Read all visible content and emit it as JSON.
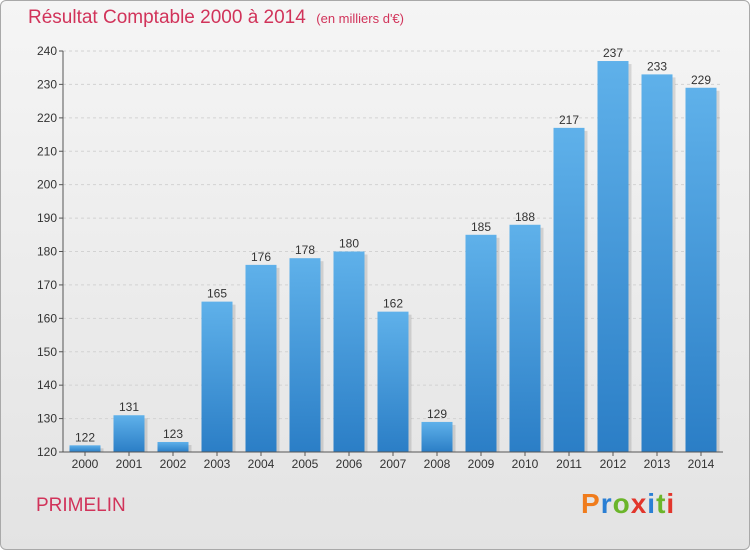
{
  "header": {
    "title": "Résultat Comptable 2000 à 2014",
    "subtitle": "(en milliers d'€)"
  },
  "footer": {
    "commune": "PRIMELIN",
    "logo": "Proxiti"
  },
  "colors": {
    "title": "#d1335a",
    "bar_light": "#5fb1ea",
    "bar_dark": "#2b7ec6",
    "logo_letters": [
      "#f07c1c",
      "#2a7fd4",
      "#6bb52a",
      "#e2362c",
      "#2a7fd4",
      "#6bb52a",
      "#e2362c"
    ]
  },
  "chart_data": {
    "type": "bar",
    "title": "Résultat Comptable 2000 à 2014",
    "subtitle": "(en milliers d'€)",
    "categories": [
      "2000",
      "2001",
      "2002",
      "2003",
      "2004",
      "2005",
      "2006",
      "2007",
      "2008",
      "2009",
      "2010",
      "2011",
      "2012",
      "2013",
      "2014"
    ],
    "values": [
      122,
      131,
      123,
      165,
      176,
      178,
      180,
      162,
      129,
      185,
      188,
      217,
      237,
      233,
      229
    ],
    "ylim": [
      120,
      240
    ],
    "yticks": [
      120,
      130,
      140,
      150,
      160,
      170,
      180,
      190,
      200,
      210,
      220,
      230,
      240
    ],
    "grid": true,
    "legend": "none",
    "xlabel": "",
    "ylabel": ""
  }
}
